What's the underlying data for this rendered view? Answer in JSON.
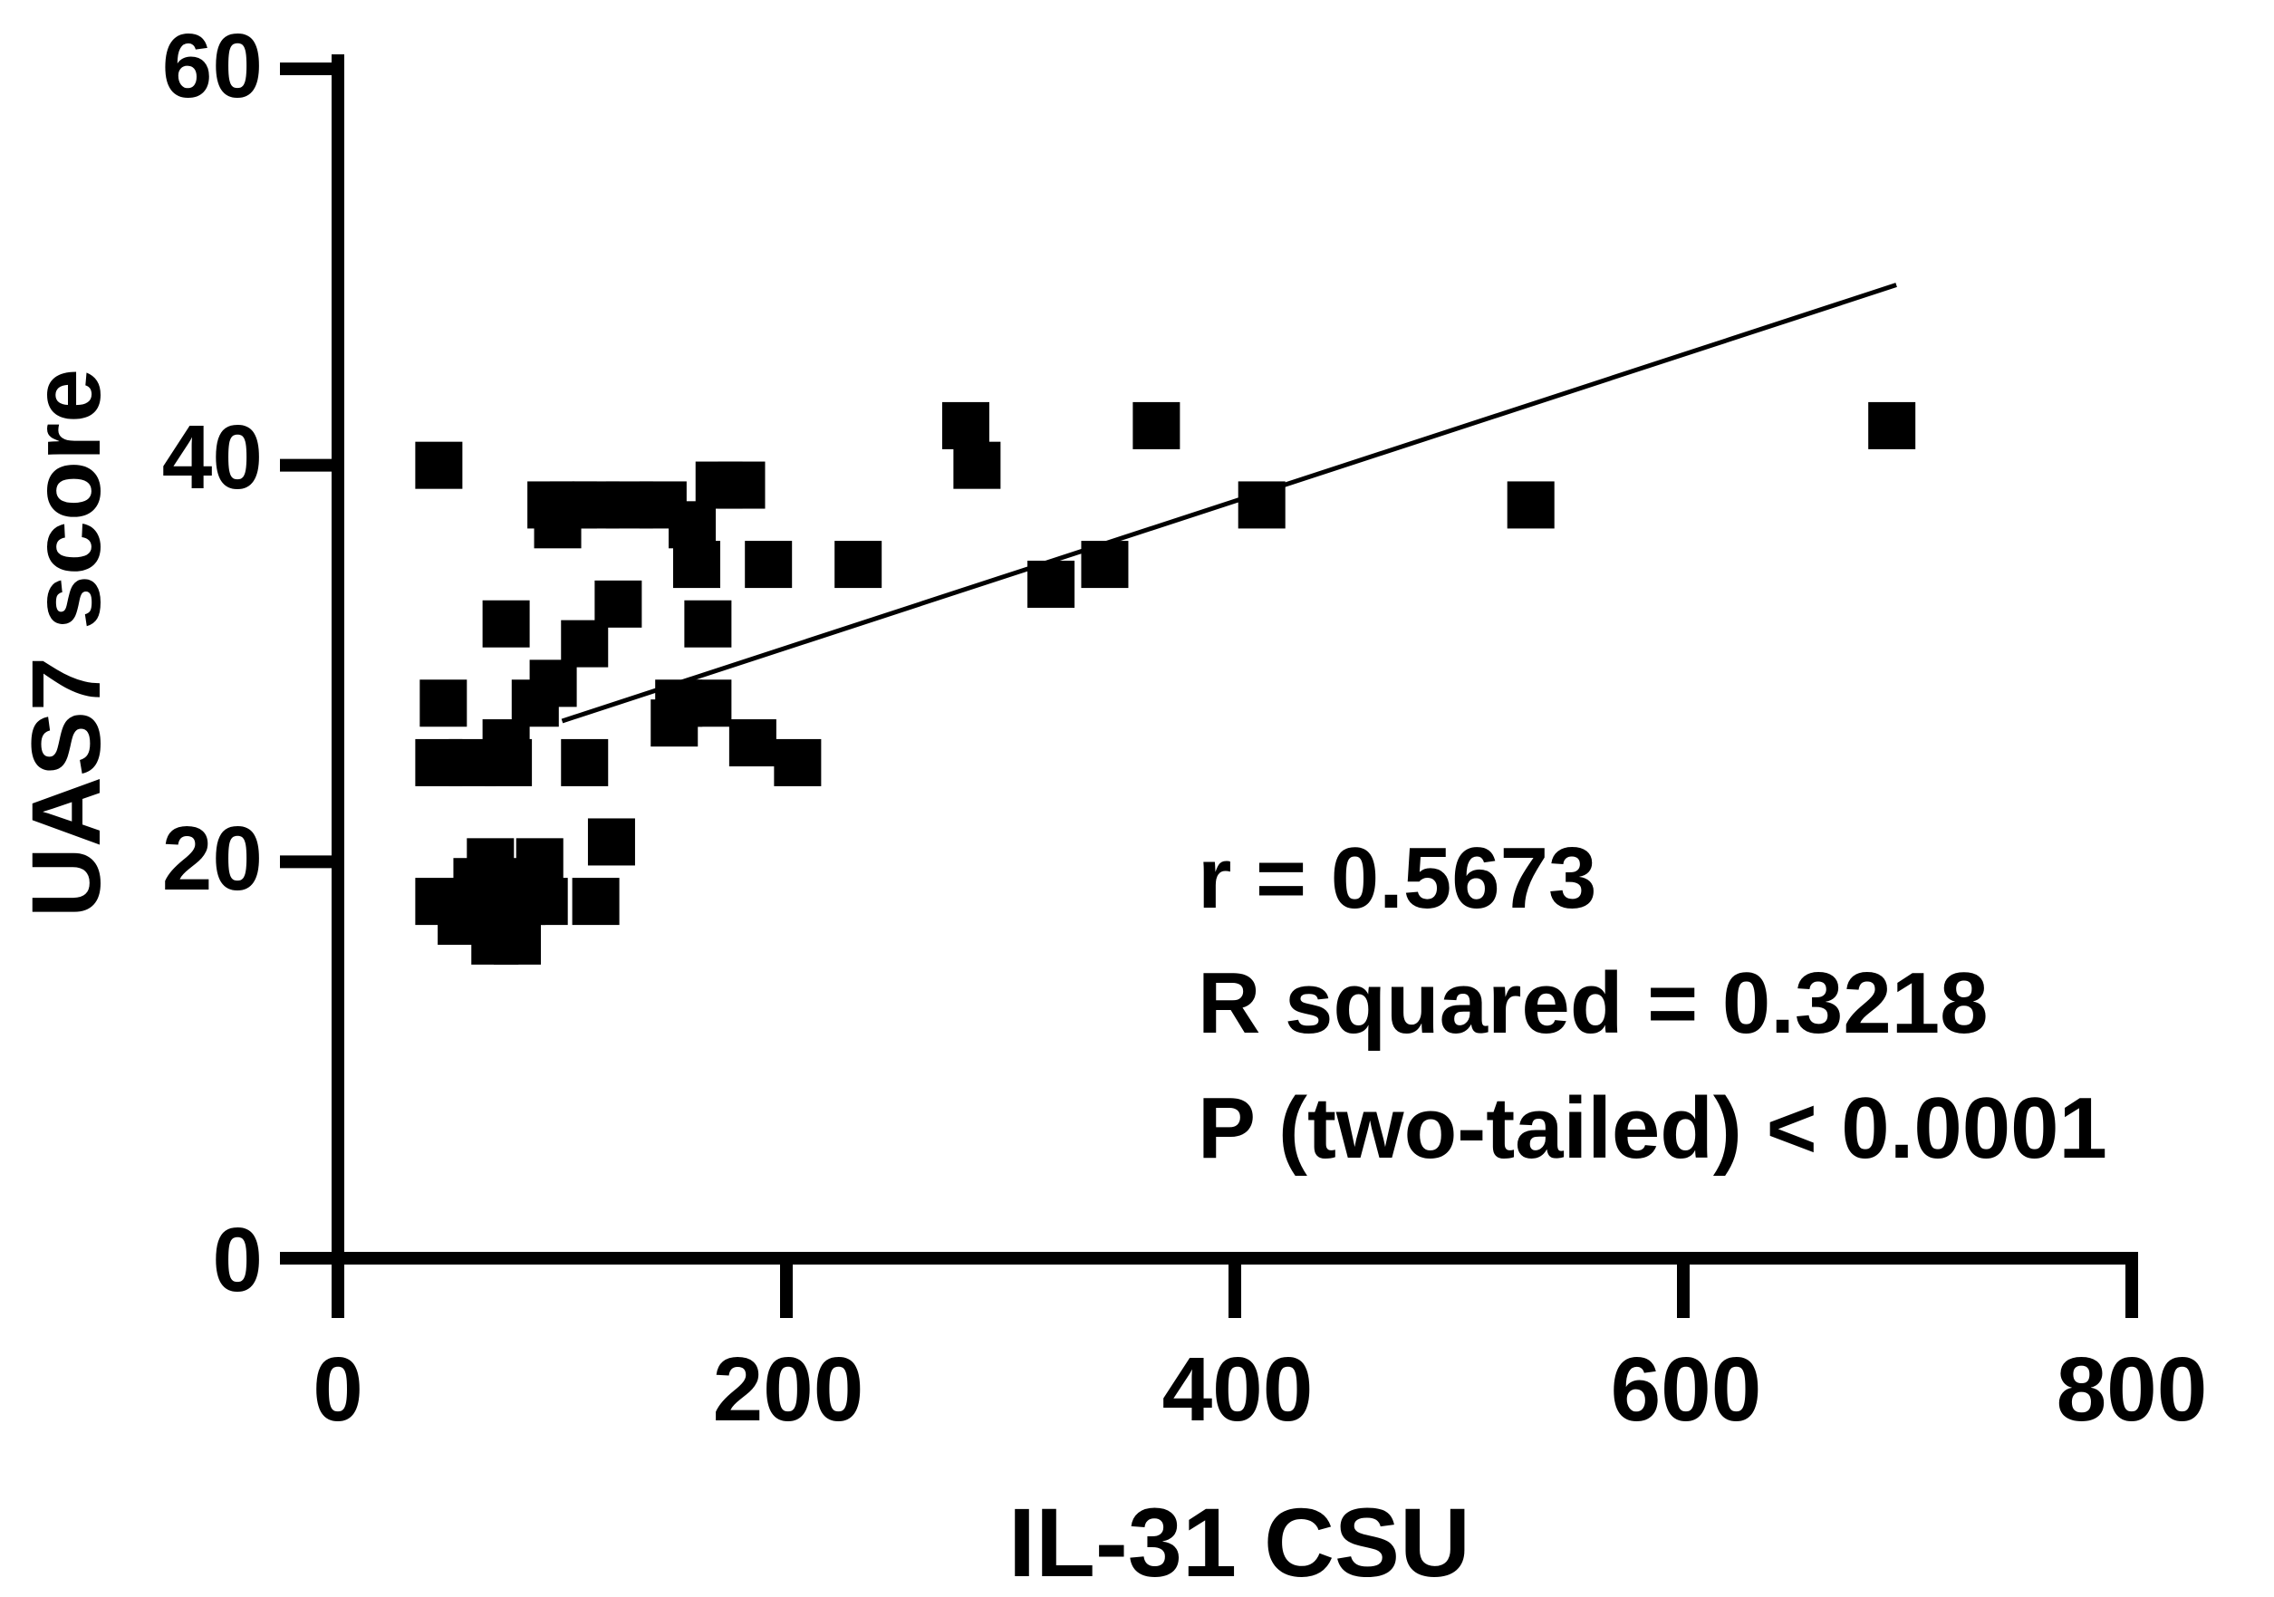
{
  "chart_data": {
    "type": "scatter",
    "title": "",
    "xlabel": "IL-31 CSU",
    "ylabel": "UAS7 score",
    "xlim": [
      0,
      800
    ],
    "ylim": [
      0,
      60
    ],
    "xticks": [
      0,
      200,
      400,
      600,
      800
    ],
    "yticks": [
      0,
      20,
      40,
      60
    ],
    "xtick_labels": [
      "0",
      "200",
      "400",
      "600",
      "800"
    ],
    "ytick_labels": [
      "0",
      "20",
      "40",
      "60"
    ],
    "grid": false,
    "legend": "none",
    "marker": "square",
    "marker_color": "#000000",
    "points": [
      {
        "x": 45,
        "y": 40
      },
      {
        "x": 47,
        "y": 28
      },
      {
        "x": 45,
        "y": 25
      },
      {
        "x": 45,
        "y": 18
      },
      {
        "x": 55,
        "y": 17
      },
      {
        "x": 60,
        "y": 25
      },
      {
        "x": 62,
        "y": 19
      },
      {
        "x": 65,
        "y": 18
      },
      {
        "x": 68,
        "y": 20
      },
      {
        "x": 70,
        "y": 16
      },
      {
        "x": 72,
        "y": 17
      },
      {
        "x": 75,
        "y": 32
      },
      {
        "x": 75,
        "y": 26
      },
      {
        "x": 76,
        "y": 25
      },
      {
        "x": 78,
        "y": 19
      },
      {
        "x": 80,
        "y": 16
      },
      {
        "x": 82,
        "y": 18
      },
      {
        "x": 88,
        "y": 28
      },
      {
        "x": 90,
        "y": 20
      },
      {
        "x": 92,
        "y": 18
      },
      {
        "x": 95,
        "y": 38
      },
      {
        "x": 96,
        "y": 29
      },
      {
        "x": 98,
        "y": 37
      },
      {
        "x": 105,
        "y": 38
      },
      {
        "x": 110,
        "y": 31
      },
      {
        "x": 110,
        "y": 25
      },
      {
        "x": 115,
        "y": 38
      },
      {
        "x": 115,
        "y": 18
      },
      {
        "x": 122,
        "y": 21
      },
      {
        "x": 125,
        "y": 33
      },
      {
        "x": 130,
        "y": 38
      },
      {
        "x": 145,
        "y": 38
      },
      {
        "x": 150,
        "y": 27
      },
      {
        "x": 152,
        "y": 28
      },
      {
        "x": 158,
        "y": 37
      },
      {
        "x": 160,
        "y": 35
      },
      {
        "x": 165,
        "y": 32
      },
      {
        "x": 165,
        "y": 28
      },
      {
        "x": 170,
        "y": 39
      },
      {
        "x": 180,
        "y": 39
      },
      {
        "x": 185,
        "y": 26
      },
      {
        "x": 192,
        "y": 35
      },
      {
        "x": 205,
        "y": 25
      },
      {
        "x": 232,
        "y": 35
      },
      {
        "x": 280,
        "y": 42
      },
      {
        "x": 285,
        "y": 40
      },
      {
        "x": 318,
        "y": 34
      },
      {
        "x": 342,
        "y": 35
      },
      {
        "x": 365,
        "y": 42
      },
      {
        "x": 412,
        "y": 38
      },
      {
        "x": 532,
        "y": 38
      },
      {
        "x": 693,
        "y": 42
      }
    ],
    "fit_line": {
      "x": [
        100,
        695
      ],
      "y": [
        27.1,
        49.1
      ]
    },
    "annotations": [
      "r = 0.5673",
      "R squared = 0.3218",
      "P (two-tailed) < 0.0001"
    ]
  }
}
